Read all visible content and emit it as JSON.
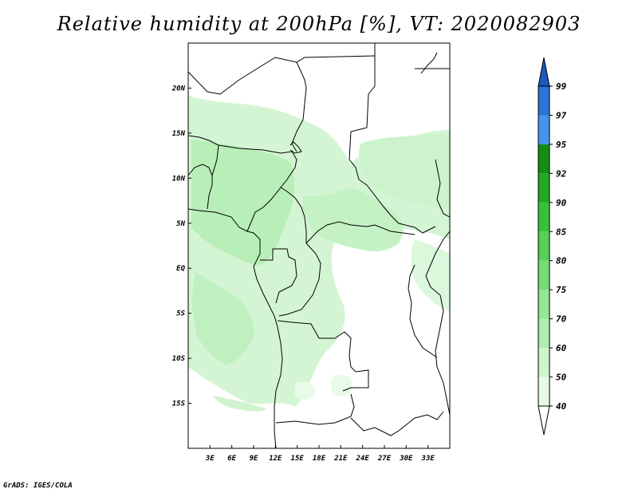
{
  "title": "Relative humidity at 200hPa [%], VT: 2020082903",
  "credit": "GrADS: IGES/COLA",
  "map": {
    "lon_range": [
      0,
      36
    ],
    "lat_range": [
      -20,
      25
    ],
    "x_ticks": [
      {
        "lon": 3,
        "label": "3E"
      },
      {
        "lon": 6,
        "label": "6E"
      },
      {
        "lon": 9,
        "label": "9E"
      },
      {
        "lon": 12,
        "label": "12E"
      },
      {
        "lon": 15,
        "label": "15E"
      },
      {
        "lon": 18,
        "label": "18E"
      },
      {
        "lon": 21,
        "label": "21E"
      },
      {
        "lon": 24,
        "label": "24E"
      },
      {
        "lon": 27,
        "label": "27E"
      },
      {
        "lon": 30,
        "label": "30E"
      },
      {
        "lon": 33,
        "label": "33E"
      }
    ],
    "y_ticks": [
      {
        "lat": 20,
        "label": "20N"
      },
      {
        "lat": 15,
        "label": "15N"
      },
      {
        "lat": 10,
        "label": "10N"
      },
      {
        "lat": 5,
        "label": "5N"
      },
      {
        "lat": 0,
        "label": "EQ"
      },
      {
        "lat": -5,
        "label": "5S"
      },
      {
        "lat": -10,
        "label": "10S"
      },
      {
        "lat": -15,
        "label": "15S"
      }
    ]
  },
  "colorbar": {
    "levels": [
      "40",
      "50",
      "60",
      "70",
      "75",
      "80",
      "85",
      "90",
      "92",
      "95",
      "97",
      "99"
    ],
    "colors": [
      "#ffffff",
      "#e6fbe6",
      "#cdf5cd",
      "#b0edb0",
      "#93e693",
      "#76dd76",
      "#55d255",
      "#38c038",
      "#24a824",
      "#128f12",
      "#4494ec",
      "#2a74d8",
      "#1c5ac0"
    ]
  }
}
